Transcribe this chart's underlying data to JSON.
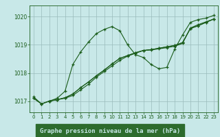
{
  "title": "Graphe pression niveau de la mer (hPa)",
  "bg_color": "#c8e8e8",
  "plot_bg": "#c8e8e8",
  "grid_color": "#99bbbb",
  "line_color": "#1a5c1a",
  "xlabel_bg": "#2d6b2d",
  "xlabel_fg": "#c8e8e8",
  "xlim": [
    -0.5,
    23.5
  ],
  "ylim": [
    1016.6,
    1020.4
  ],
  "yticks": [
    1017,
    1018,
    1019,
    1020
  ],
  "xticks": [
    0,
    1,
    2,
    3,
    4,
    5,
    6,
    7,
    8,
    9,
    10,
    11,
    12,
    13,
    14,
    15,
    16,
    17,
    18,
    19,
    20,
    21,
    22,
    23
  ],
  "series": [
    {
      "x": [
        0,
        1,
        2,
        3,
        4,
        5,
        6,
        7,
        8,
        9,
        10,
        11,
        12,
        13,
        14,
        15,
        16,
        17,
        18,
        19,
        20,
        21,
        22,
        23
      ],
      "y": [
        1017.15,
        1016.9,
        1017.0,
        1017.1,
        1017.35,
        1018.3,
        1018.75,
        1019.1,
        1019.4,
        1019.55,
        1019.65,
        1019.5,
        1019.0,
        1018.65,
        1018.55,
        1018.3,
        1018.15,
        1018.2,
        1018.85,
        1019.35,
        1019.8,
        1019.9,
        1019.95,
        1020.05
      ]
    },
    {
      "x": [
        0,
        1,
        2,
        3,
        4,
        5,
        6,
        7,
        8,
        9,
        10,
        11,
        12,
        13,
        14,
        15,
        16,
        17,
        18,
        19,
        20,
        21,
        22,
        23
      ],
      "y": [
        1017.1,
        1016.9,
        1017.0,
        1017.05,
        1017.1,
        1017.2,
        1017.4,
        1017.6,
        1017.85,
        1018.05,
        1018.25,
        1018.45,
        1018.6,
        1018.7,
        1018.8,
        1018.82,
        1018.86,
        1018.9,
        1018.95,
        1019.05,
        1019.6,
        1019.72,
        1019.82,
        1019.92
      ]
    },
    {
      "x": [
        0,
        1,
        2,
        3,
        4,
        5,
        6,
        7,
        8,
        9,
        10,
        11,
        12,
        13,
        14,
        15,
        16,
        17,
        18,
        19,
        20,
        21,
        22,
        23
      ],
      "y": [
        1017.1,
        1016.9,
        1017.0,
        1017.05,
        1017.12,
        1017.25,
        1017.48,
        1017.68,
        1017.9,
        1018.1,
        1018.32,
        1018.52,
        1018.62,
        1018.72,
        1018.8,
        1018.83,
        1018.88,
        1018.93,
        1018.98,
        1019.08,
        1019.58,
        1019.68,
        1019.8,
        1019.92
      ]
    },
    {
      "x": [
        2,
        3,
        4,
        5,
        6,
        7,
        8,
        9,
        10,
        11,
        12,
        13,
        14,
        15,
        16,
        17,
        18,
        19,
        20,
        21,
        22,
        23
      ],
      "y": [
        1017.0,
        1017.05,
        1017.12,
        1017.25,
        1017.48,
        1017.68,
        1017.9,
        1018.1,
        1018.32,
        1018.52,
        1018.62,
        1018.72,
        1018.8,
        1018.83,
        1018.88,
        1018.93,
        1018.98,
        1019.08,
        1019.58,
        1019.68,
        1019.8,
        1019.92
      ]
    }
  ]
}
